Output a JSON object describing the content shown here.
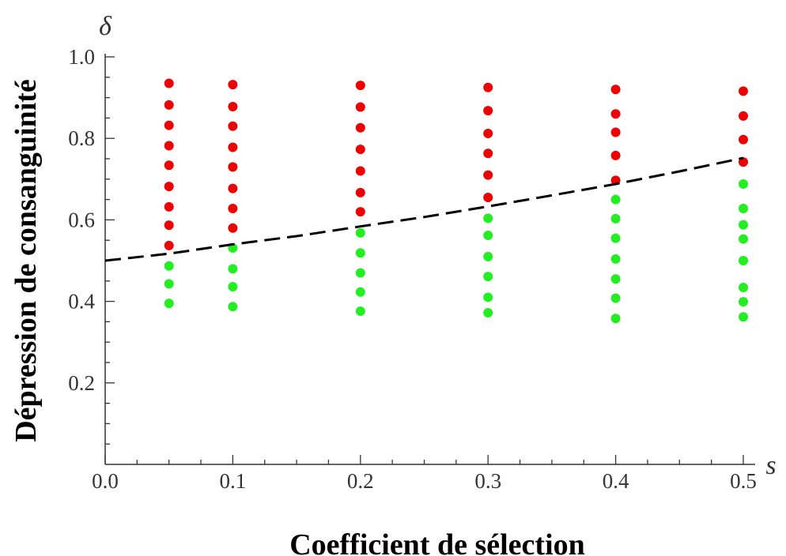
{
  "chart_data": {
    "type": "scatter",
    "xlabel": "Coefficient de sélection",
    "ylabel": "Dépression de consanguinité",
    "x_axis_symbol": "s",
    "y_axis_symbol": "δ",
    "xlim": [
      0,
      0.5
    ],
    "ylim": [
      0,
      1.0
    ],
    "x_ticks": [
      "0.0",
      "0.1",
      "0.2",
      "0.3",
      "0.4",
      "0.5"
    ],
    "y_ticks": [
      "0.2",
      "0.4",
      "0.6",
      "0.8",
      "1.0"
    ],
    "grid": false,
    "series": [
      {
        "color": "#ee0000",
        "points": [
          [
            0.05,
            0.935
          ],
          [
            0.05,
            0.882
          ],
          [
            0.05,
            0.832
          ],
          [
            0.05,
            0.782
          ],
          [
            0.05,
            0.734
          ],
          [
            0.05,
            0.682
          ],
          [
            0.05,
            0.632
          ],
          [
            0.05,
            0.587
          ],
          [
            0.05,
            0.537
          ],
          [
            0.1,
            0.932
          ],
          [
            0.1,
            0.878
          ],
          [
            0.1,
            0.83
          ],
          [
            0.1,
            0.778
          ],
          [
            0.1,
            0.73
          ],
          [
            0.1,
            0.677
          ],
          [
            0.1,
            0.628
          ],
          [
            0.1,
            0.58
          ],
          [
            0.2,
            0.93
          ],
          [
            0.2,
            0.877
          ],
          [
            0.2,
            0.826
          ],
          [
            0.2,
            0.773
          ],
          [
            0.2,
            0.72
          ],
          [
            0.2,
            0.667
          ],
          [
            0.2,
            0.62
          ],
          [
            0.3,
            0.925
          ],
          [
            0.3,
            0.868
          ],
          [
            0.3,
            0.812
          ],
          [
            0.3,
            0.763
          ],
          [
            0.3,
            0.71
          ],
          [
            0.3,
            0.655
          ],
          [
            0.4,
            0.92
          ],
          [
            0.4,
            0.86
          ],
          [
            0.4,
            0.815
          ],
          [
            0.4,
            0.758
          ],
          [
            0.4,
            0.697
          ],
          [
            0.5,
            0.916
          ],
          [
            0.5,
            0.855
          ],
          [
            0.5,
            0.797
          ],
          [
            0.5,
            0.742
          ]
        ]
      },
      {
        "color": "#22ee22",
        "points": [
          [
            0.05,
            0.487
          ],
          [
            0.05,
            0.443
          ],
          [
            0.05,
            0.395
          ],
          [
            0.1,
            0.531
          ],
          [
            0.1,
            0.48
          ],
          [
            0.1,
            0.436
          ],
          [
            0.1,
            0.387
          ],
          [
            0.2,
            0.568
          ],
          [
            0.2,
            0.519
          ],
          [
            0.2,
            0.47
          ],
          [
            0.2,
            0.423
          ],
          [
            0.2,
            0.376
          ],
          [
            0.3,
            0.604
          ],
          [
            0.3,
            0.562
          ],
          [
            0.3,
            0.51
          ],
          [
            0.3,
            0.461
          ],
          [
            0.3,
            0.41
          ],
          [
            0.3,
            0.372
          ],
          [
            0.4,
            0.65
          ],
          [
            0.4,
            0.603
          ],
          [
            0.4,
            0.555
          ],
          [
            0.4,
            0.504
          ],
          [
            0.4,
            0.455
          ],
          [
            0.4,
            0.408
          ],
          [
            0.4,
            0.358
          ],
          [
            0.5,
            0.688
          ],
          [
            0.5,
            0.628
          ],
          [
            0.5,
            0.588
          ],
          [
            0.5,
            0.553
          ],
          [
            0.5,
            0.5
          ],
          [
            0.5,
            0.434
          ],
          [
            0.5,
            0.399
          ],
          [
            0.5,
            0.362
          ]
        ]
      }
    ],
    "threshold_curve": {
      "style": "dashed",
      "color": "#000000",
      "points": [
        [
          0.0,
          0.5
        ],
        [
          0.05,
          0.517
        ],
        [
          0.1,
          0.54
        ],
        [
          0.15,
          0.56
        ],
        [
          0.2,
          0.584
        ],
        [
          0.25,
          0.607
        ],
        [
          0.3,
          0.633
        ],
        [
          0.35,
          0.66
        ],
        [
          0.4,
          0.688
        ],
        [
          0.45,
          0.719
        ],
        [
          0.5,
          0.752
        ]
      ]
    }
  }
}
